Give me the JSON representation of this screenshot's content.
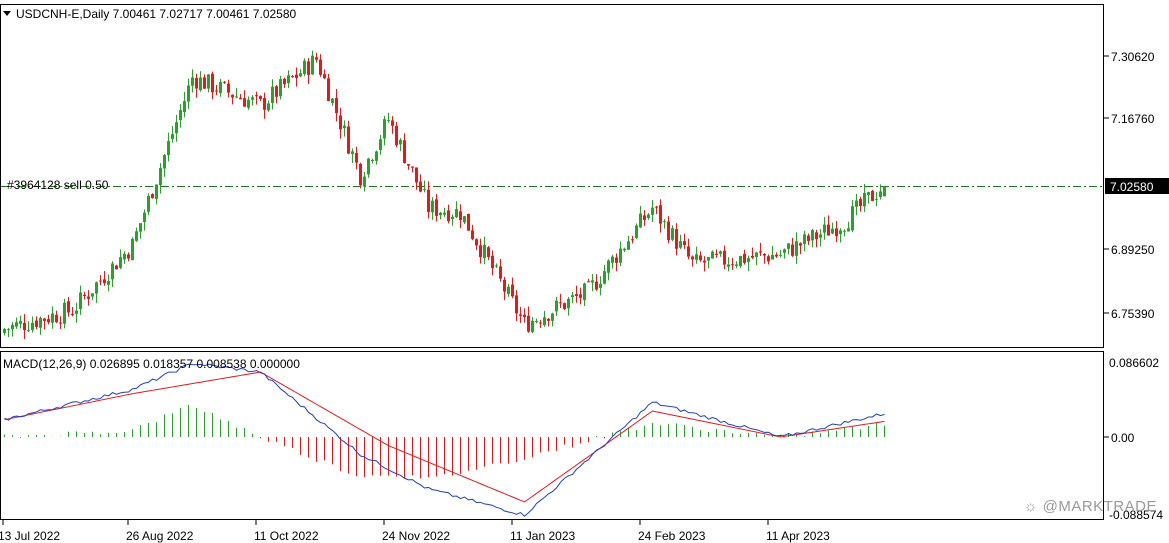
{
  "header": {
    "symbol_line": "USDCNH-E,Daily  7.00461 7.02717 7.00461 7.02580",
    "order_label": "#3964128 sell 0.50"
  },
  "price_axis": {
    "ticks": [
      "7.30620",
      "7.16760",
      "6.89250",
      "6.75390"
    ],
    "current_price": "7.02580"
  },
  "macd": {
    "label": "MACD(12,26,9) 0.026895 0.018357 0.008538 0.000000",
    "ticks": [
      "0.086602",
      "0.00",
      "-0.088574"
    ]
  },
  "date_axis": [
    "13 Jul 2022",
    "26 Aug 2022",
    "11 Oct 2022",
    "24 Nov 2022",
    "11 Jan 2023",
    "24 Feb 2023",
    "11 Apr 2023"
  ],
  "watermark": "@MARKTRADE",
  "colors": {
    "bull": "#2ca02c",
    "bear": "#e31a1c",
    "macd_line": "#1f3fbf",
    "signal_line": "#e31a1c",
    "level_line": "#1a7a1a"
  },
  "chart_data": {
    "type": "candlestick",
    "symbol": "USDCNH-E",
    "timeframe": "Daily",
    "last_ohlc": [
      7.00461,
      7.02717,
      7.00461,
      7.0258
    ],
    "order_level": 7.0258,
    "price_close_keypoints": [
      [
        "13 Jul 2022",
        6.72
      ],
      [
        "5 Aug 2022",
        6.76
      ],
      [
        "26 Aug 2022",
        6.9
      ],
      [
        "16 Sep 2022",
        7.26
      ],
      [
        "11 Oct 2022",
        7.2
      ],
      [
        "31 Oct 2022",
        7.3
      ],
      [
        "15 Nov 2022",
        7.05
      ],
      [
        "24 Nov 2022",
        7.17
      ],
      [
        "8 Dec 2022",
        6.98
      ],
      [
        "20 Dec 2022",
        6.97
      ],
      [
        "11 Jan 2023",
        6.73
      ],
      [
        "2 Feb 2023",
        6.8
      ],
      [
        "24 Feb 2023",
        6.98
      ],
      [
        "10 Mar 2023",
        6.86
      ],
      [
        "11 Apr 2023",
        6.88
      ],
      [
        "3 May 2023",
        6.95
      ],
      [
        "17 May 2023",
        7.03
      ]
    ],
    "macd_keypoints": [
      [
        "13 Jul 2022",
        0.02
      ],
      [
        "26 Aug 2022",
        0.055
      ],
      [
        "16 Sep 2022",
        0.085
      ],
      [
        "11 Oct 2022",
        0.075
      ],
      [
        "15 Nov 2022",
        -0.02
      ],
      [
        "8 Dec 2022",
        -0.06
      ],
      [
        "11 Jan 2023",
        -0.09
      ],
      [
        "24 Feb 2023",
        0.04
      ],
      [
        "11 Apr 2023",
        0.0
      ],
      [
        "17 May 2023",
        0.027
      ]
    ],
    "signal_keypoints": [
      [
        "13 Jul 2022",
        0.02
      ],
      [
        "26 Aug 2022",
        0.05
      ],
      [
        "11 Oct 2022",
        0.075
      ],
      [
        "24 Nov 2022",
        -0.01
      ],
      [
        "11 Jan 2023",
        -0.075
      ],
      [
        "24 Feb 2023",
        0.03
      ],
      [
        "11 Apr 2023",
        0.0
      ],
      [
        "17 May 2023",
        0.018
      ]
    ]
  }
}
